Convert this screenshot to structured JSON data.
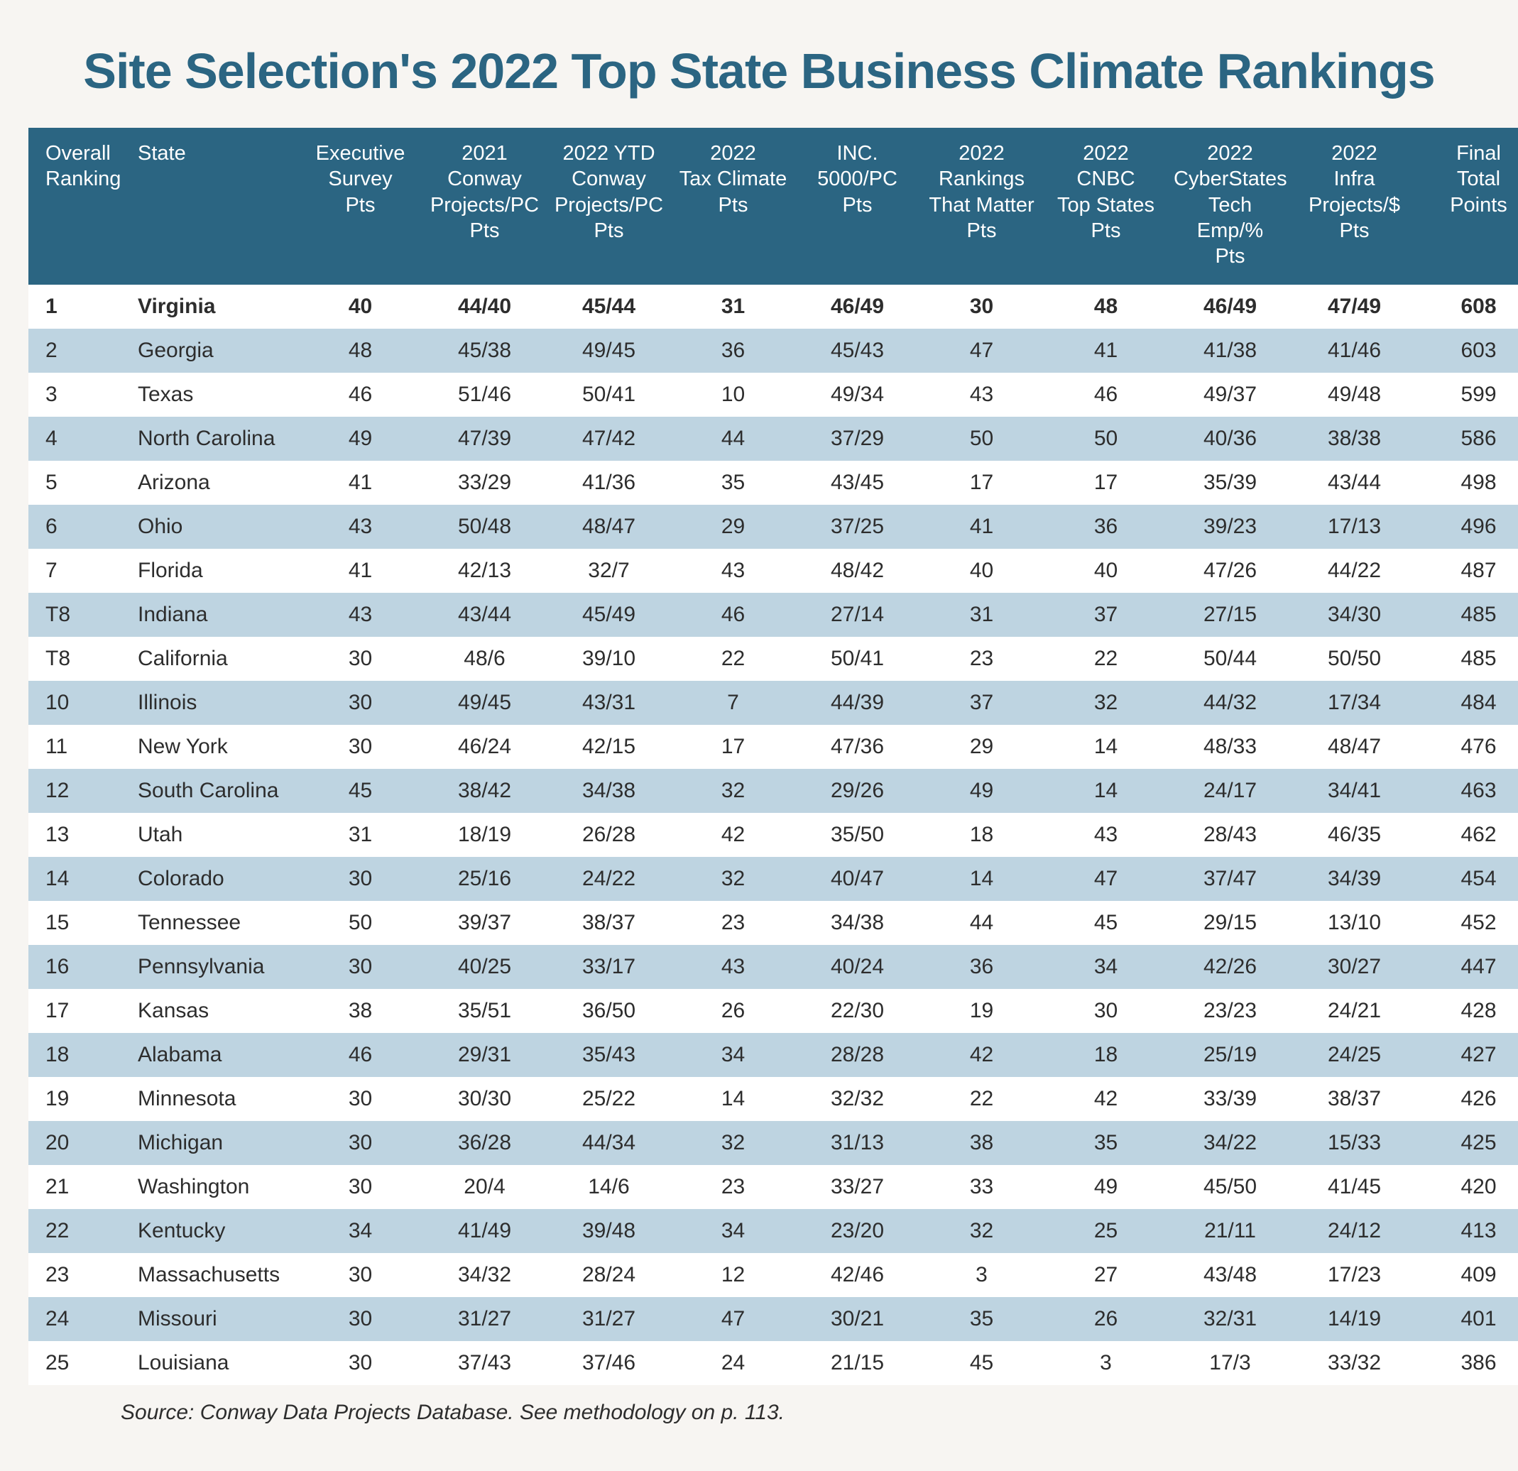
{
  "title": "Site Selection's 2022 Top State Business Climate Rankings",
  "source": "Source: Conway Data Projects Database. See methodology on p. 113.",
  "colors": {
    "title": "#2b6582",
    "header_bg": "#2b6582",
    "header_text": "#ffffff",
    "row_even_bg": "#ffffff",
    "row_odd_bg": "#bed4e1",
    "page_bg": "#f7f5f2",
    "body_text": "#2d2d2d"
  },
  "columns": [
    {
      "key": "rank",
      "label": "Overall\nRanking",
      "align": "left"
    },
    {
      "key": "state",
      "label": "State",
      "align": "left"
    },
    {
      "key": "exec",
      "label": "Executive\nSurvey\nPts",
      "align": "center"
    },
    {
      "key": "c2021",
      "label": "2021\nConway\nProjects/PC\nPts",
      "align": "center"
    },
    {
      "key": "c2022",
      "label": "2022 YTD\nConway\nProjects/PC\nPts",
      "align": "center"
    },
    {
      "key": "tax",
      "label": "2022\nTax Climate\nPts",
      "align": "center"
    },
    {
      "key": "inc",
      "label": "INC. 5000/PC\nPts",
      "align": "center"
    },
    {
      "key": "rtm",
      "label": "2022\nRankings\nThat Matter\nPts",
      "align": "center"
    },
    {
      "key": "cnbc",
      "label": "2022\nCNBC\nTop States\nPts",
      "align": "center"
    },
    {
      "key": "cyber",
      "label": "2022\nCyberStates\nTech Emp/%\nPts",
      "align": "center"
    },
    {
      "key": "infra",
      "label": "2022\nInfra\nProjects/$\nPts",
      "align": "center"
    },
    {
      "key": "total",
      "label": "Final\nTotal\nPoints",
      "align": "center"
    }
  ],
  "rows": [
    {
      "bold": true,
      "cells": [
        "1",
        "Virginia",
        "40",
        "44/40",
        "45/44",
        "31",
        "46/49",
        "30",
        "48",
        "46/49",
        "47/49",
        "608"
      ]
    },
    {
      "bold": false,
      "cells": [
        "2",
        "Georgia",
        "48",
        "45/38",
        "49/45",
        "36",
        "45/43",
        "47",
        "41",
        "41/38",
        "41/46",
        "603"
      ]
    },
    {
      "bold": false,
      "cells": [
        "3",
        "Texas",
        "46",
        "51/46",
        "50/41",
        "10",
        "49/34",
        "43",
        "46",
        "49/37",
        "49/48",
        "599"
      ]
    },
    {
      "bold": false,
      "cells": [
        "4",
        "North Carolina",
        "49",
        "47/39",
        "47/42",
        "44",
        "37/29",
        "50",
        "50",
        "40/36",
        "38/38",
        "586"
      ]
    },
    {
      "bold": false,
      "cells": [
        "5",
        "Arizona",
        "41",
        "33/29",
        "41/36",
        "35",
        "43/45",
        "17",
        "17",
        "35/39",
        "43/44",
        "498"
      ]
    },
    {
      "bold": false,
      "cells": [
        "6",
        "Ohio",
        "43",
        "50/48",
        "48/47",
        "29",
        "37/25",
        "41",
        "36",
        "39/23",
        "17/13",
        "496"
      ]
    },
    {
      "bold": false,
      "cells": [
        "7",
        "Florida",
        "41",
        "42/13",
        "32/7",
        "43",
        "48/42",
        "40",
        "40",
        "47/26",
        "44/22",
        "487"
      ]
    },
    {
      "bold": false,
      "cells": [
        "T8",
        "Indiana",
        "43",
        "43/44",
        "45/49",
        "46",
        "27/14",
        "31",
        "37",
        "27/15",
        "34/30",
        "485"
      ]
    },
    {
      "bold": false,
      "cells": [
        "T8",
        "California",
        "30",
        "48/6",
        "39/10",
        "22",
        "50/41",
        "23",
        "22",
        "50/44",
        "50/50",
        "485"
      ]
    },
    {
      "bold": false,
      "cells": [
        "10",
        "Illinois",
        "30",
        "49/45",
        "43/31",
        "7",
        "44/39",
        "37",
        "32",
        "44/32",
        "17/34",
        "484"
      ]
    },
    {
      "bold": false,
      "cells": [
        "11",
        "New York",
        "30",
        "46/24",
        "42/15",
        "17",
        "47/36",
        "29",
        "14",
        "48/33",
        "48/47",
        "476"
      ]
    },
    {
      "bold": false,
      "cells": [
        "12",
        "South Carolina",
        "45",
        "38/42",
        "34/38",
        "32",
        "29/26",
        "49",
        "14",
        "24/17",
        "34/41",
        "463"
      ]
    },
    {
      "bold": false,
      "cells": [
        "13",
        "Utah",
        "31",
        "18/19",
        "26/28",
        "42",
        "35/50",
        "18",
        "43",
        "28/43",
        "46/35",
        "462"
      ]
    },
    {
      "bold": false,
      "cells": [
        "14",
        "Colorado",
        "30",
        "25/16",
        "24/22",
        "32",
        "40/47",
        "14",
        "47",
        "37/47",
        "34/39",
        "454"
      ]
    },
    {
      "bold": false,
      "cells": [
        "15",
        "Tennessee",
        "50",
        "39/37",
        "38/37",
        "23",
        "34/38",
        "44",
        "45",
        "29/15",
        "13/10",
        "452"
      ]
    },
    {
      "bold": false,
      "cells": [
        "16",
        "Pennsylvania",
        "30",
        "40/25",
        "33/17",
        "43",
        "40/24",
        "36",
        "34",
        "42/26",
        "30/27",
        "447"
      ]
    },
    {
      "bold": false,
      "cells": [
        "17",
        "Kansas",
        "38",
        "35/51",
        "36/50",
        "26",
        "22/30",
        "19",
        "30",
        "23/23",
        "24/21",
        "428"
      ]
    },
    {
      "bold": false,
      "cells": [
        "18",
        "Alabama",
        "46",
        "29/31",
        "35/43",
        "34",
        "28/28",
        "42",
        "18",
        "25/19",
        "24/25",
        "427"
      ]
    },
    {
      "bold": false,
      "cells": [
        "19",
        "Minnesota",
        "30",
        "30/30",
        "25/22",
        "14",
        "32/32",
        "22",
        "42",
        "33/39",
        "38/37",
        "426"
      ]
    },
    {
      "bold": false,
      "cells": [
        "20",
        "Michigan",
        "30",
        "36/28",
        "44/34",
        "32",
        "31/13",
        "38",
        "35",
        "34/22",
        "15/33",
        "425"
      ]
    },
    {
      "bold": false,
      "cells": [
        "21",
        "Washington",
        "30",
        "20/4",
        "14/6",
        "23",
        "33/27",
        "33",
        "49",
        "45/50",
        "41/45",
        "420"
      ]
    },
    {
      "bold": false,
      "cells": [
        "22",
        "Kentucky",
        "34",
        "41/49",
        "39/48",
        "34",
        "23/20",
        "32",
        "25",
        "21/11",
        "24/12",
        "413"
      ]
    },
    {
      "bold": false,
      "cells": [
        "23",
        "Massachusetts",
        "30",
        "34/32",
        "28/24",
        "12",
        "42/46",
        "3",
        "27",
        "43/48",
        "17/23",
        "409"
      ]
    },
    {
      "bold": false,
      "cells": [
        "24",
        "Missouri",
        "30",
        "31/27",
        "31/27",
        "47",
        "30/21",
        "35",
        "26",
        "32/31",
        "14/19",
        "401"
      ]
    },
    {
      "bold": false,
      "cells": [
        "25",
        "Louisiana",
        "30",
        "37/43",
        "37/46",
        "24",
        "21/15",
        "45",
        "3",
        "17/3",
        "33/32",
        "386"
      ]
    }
  ]
}
